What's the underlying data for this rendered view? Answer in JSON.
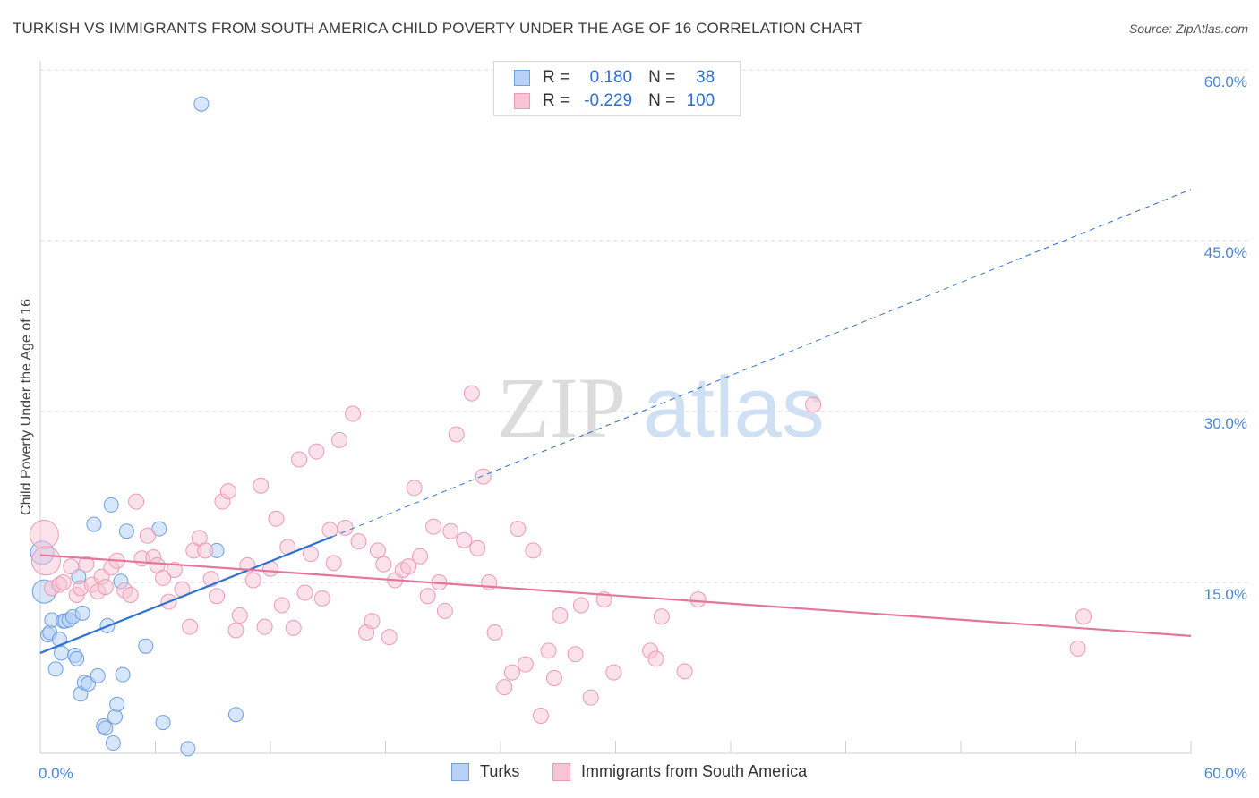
{
  "header": {
    "title": "TURKISH VS IMMIGRANTS FROM SOUTH AMERICA CHILD POVERTY UNDER THE AGE OF 16 CORRELATION CHART",
    "source": "Source: ZipAtlas.com"
  },
  "watermark": {
    "zip": "ZIP",
    "atlas": "atlas"
  },
  "legend": {
    "rows": [
      {
        "r_label": "R =",
        "r_value": "0.180",
        "n_label": "N =",
        "n_value": "38"
      },
      {
        "r_label": "R =",
        "r_value": "-0.229",
        "n_label": "N =",
        "n_value": "100"
      }
    ]
  },
  "bottom_legend": {
    "turks": "Turks",
    "immigrants": "Immigrants from South America"
  },
  "colors": {
    "turks_fill": "#b7d2f5",
    "turks_stroke": "#6f9fe0",
    "turks_line": "#2f72d6",
    "imm_fill": "#f8c4d4",
    "imm_stroke": "#ee9ab5",
    "imm_line": "#e4769a",
    "tick_text": "#4a86d6",
    "grid": "#d9d9d9"
  },
  "chart_data": {
    "type": "scatter",
    "title": "TURKISH VS IMMIGRANTS FROM SOUTH AMERICA CHILD POVERTY UNDER THE AGE OF 16 CORRELATION CHART",
    "xlabel": "",
    "ylabel": "Child Poverty Under the Age of 16",
    "xlim": [
      0,
      60
    ],
    "ylim": [
      0,
      60
    ],
    "x_tick_labels": [
      "0.0%",
      "60.0%"
    ],
    "y_tick_values": [
      15,
      30,
      45,
      60
    ],
    "y_tick_labels": [
      "15.0%",
      "30.0%",
      "45.0%",
      "60.0%"
    ],
    "grid": true,
    "legend_position": "top-center",
    "series": [
      {
        "name": "Turks",
        "r": 0.18,
        "n": 38,
        "trend": {
          "x": [
            0,
            15.2
          ],
          "y": [
            8.8,
            19.0
          ],
          "dashed_extension": {
            "x": [
              15.2,
              60
            ],
            "y": [
              19.0,
              49.5
            ]
          }
        },
        "points": [
          [
            0.1,
            17.6
          ],
          [
            0.2,
            14.2
          ],
          [
            0.4,
            10.4
          ],
          [
            0.5,
            10.6
          ],
          [
            0.6,
            11.7
          ],
          [
            0.8,
            7.4
          ],
          [
            1.0,
            10.0
          ],
          [
            1.1,
            8.8
          ],
          [
            1.2,
            11.6
          ],
          [
            1.3,
            11.6
          ],
          [
            1.5,
            11.7
          ],
          [
            1.7,
            12.0
          ],
          [
            1.8,
            8.6
          ],
          [
            1.9,
            8.3
          ],
          [
            2.0,
            15.5
          ],
          [
            2.1,
            5.2
          ],
          [
            2.2,
            12.3
          ],
          [
            2.3,
            6.2
          ],
          [
            2.5,
            6.1
          ],
          [
            2.8,
            20.1
          ],
          [
            3.0,
            6.8
          ],
          [
            3.3,
            2.4
          ],
          [
            3.4,
            2.2
          ],
          [
            3.5,
            11.2
          ],
          [
            3.7,
            21.8
          ],
          [
            3.8,
            0.9
          ],
          [
            3.9,
            3.2
          ],
          [
            4.0,
            4.3
          ],
          [
            4.2,
            15.1
          ],
          [
            4.3,
            6.9
          ],
          [
            4.5,
            19.5
          ],
          [
            5.5,
            9.4
          ],
          [
            6.2,
            19.7
          ],
          [
            6.4,
            2.7
          ],
          [
            7.7,
            0.4
          ],
          [
            8.4,
            57.0
          ],
          [
            9.2,
            17.8
          ],
          [
            10.2,
            3.4
          ]
        ]
      },
      {
        "name": "Immigrants from South America",
        "r": -0.229,
        "n": 100,
        "trend": {
          "x": [
            0,
            60
          ],
          "y": [
            17.4,
            10.3
          ]
        },
        "points": [
          [
            0.2,
            19.2
          ],
          [
            0.3,
            16.9
          ],
          [
            0.6,
            14.5
          ],
          [
            1.0,
            14.8
          ],
          [
            1.2,
            15.0
          ],
          [
            1.6,
            16.4
          ],
          [
            1.9,
            13.9
          ],
          [
            2.1,
            14.5
          ],
          [
            2.4,
            16.6
          ],
          [
            2.7,
            14.8
          ],
          [
            3.0,
            14.2
          ],
          [
            3.2,
            15.5
          ],
          [
            3.4,
            14.6
          ],
          [
            3.7,
            16.3
          ],
          [
            4.0,
            16.9
          ],
          [
            4.4,
            14.3
          ],
          [
            4.7,
            13.9
          ],
          [
            5.0,
            22.1
          ],
          [
            5.3,
            17.1
          ],
          [
            5.6,
            19.1
          ],
          [
            5.9,
            17.2
          ],
          [
            6.1,
            16.5
          ],
          [
            6.4,
            15.4
          ],
          [
            6.7,
            13.3
          ],
          [
            7.0,
            16.1
          ],
          [
            7.4,
            14.4
          ],
          [
            7.8,
            11.1
          ],
          [
            8.0,
            17.8
          ],
          [
            8.3,
            18.9
          ],
          [
            8.6,
            17.8
          ],
          [
            8.9,
            15.3
          ],
          [
            9.2,
            13.8
          ],
          [
            9.5,
            22.1
          ],
          [
            9.8,
            23.0
          ],
          [
            10.2,
            10.8
          ],
          [
            10.4,
            12.1
          ],
          [
            10.8,
            16.5
          ],
          [
            11.1,
            15.2
          ],
          [
            11.5,
            23.5
          ],
          [
            11.7,
            11.1
          ],
          [
            12.0,
            16.2
          ],
          [
            12.3,
            20.6
          ],
          [
            12.6,
            13.0
          ],
          [
            12.9,
            18.1
          ],
          [
            13.2,
            11.0
          ],
          [
            13.5,
            25.8
          ],
          [
            13.8,
            14.1
          ],
          [
            14.1,
            17.5
          ],
          [
            14.4,
            26.5
          ],
          [
            14.7,
            13.6
          ],
          [
            15.1,
            19.6
          ],
          [
            15.3,
            16.7
          ],
          [
            15.6,
            27.5
          ],
          [
            15.9,
            19.8
          ],
          [
            16.3,
            29.8
          ],
          [
            16.6,
            18.6
          ],
          [
            17.0,
            10.6
          ],
          [
            17.3,
            11.6
          ],
          [
            17.6,
            17.8
          ],
          [
            17.9,
            16.6
          ],
          [
            18.2,
            10.2
          ],
          [
            18.5,
            15.2
          ],
          [
            18.9,
            16.1
          ],
          [
            19.2,
            16.4
          ],
          [
            19.5,
            23.3
          ],
          [
            19.8,
            17.3
          ],
          [
            20.2,
            13.8
          ],
          [
            20.5,
            19.9
          ],
          [
            20.8,
            15.0
          ],
          [
            21.1,
            12.5
          ],
          [
            21.4,
            19.5
          ],
          [
            21.7,
            28.0
          ],
          [
            22.1,
            18.7
          ],
          [
            22.5,
            31.6
          ],
          [
            22.8,
            18.0
          ],
          [
            23.1,
            24.3
          ],
          [
            23.4,
            15.0
          ],
          [
            23.7,
            10.6
          ],
          [
            24.2,
            5.8
          ],
          [
            24.6,
            7.1
          ],
          [
            24.9,
            19.7
          ],
          [
            25.3,
            7.8
          ],
          [
            25.7,
            17.8
          ],
          [
            26.1,
            3.3
          ],
          [
            26.5,
            9.0
          ],
          [
            26.8,
            6.6
          ],
          [
            27.1,
            12.1
          ],
          [
            27.9,
            8.7
          ],
          [
            28.2,
            13.0
          ],
          [
            28.7,
            4.9
          ],
          [
            29.4,
            13.5
          ],
          [
            29.9,
            7.1
          ],
          [
            31.8,
            9.0
          ],
          [
            32.1,
            8.3
          ],
          [
            32.4,
            12.0
          ],
          [
            33.6,
            7.2
          ],
          [
            34.3,
            13.5
          ],
          [
            40.3,
            30.6
          ],
          [
            54.1,
            9.2
          ],
          [
            54.4,
            12.0
          ]
        ]
      }
    ]
  }
}
